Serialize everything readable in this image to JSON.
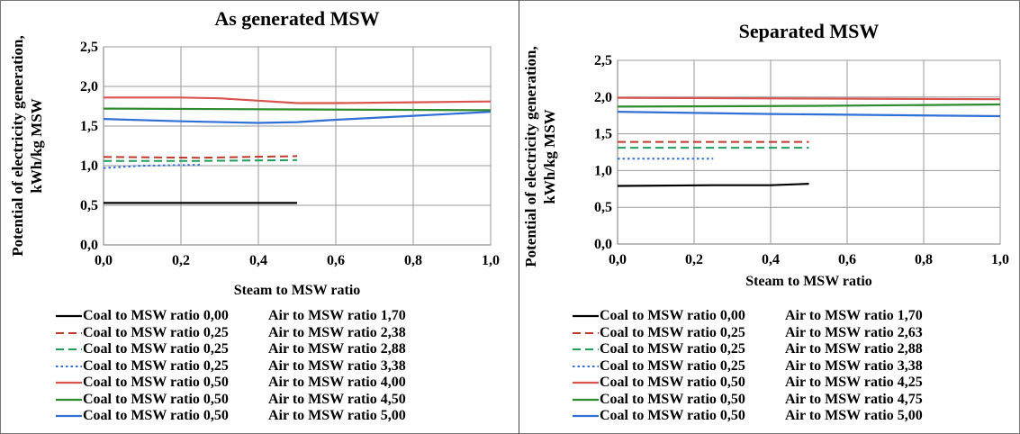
{
  "chart_data": [
    {
      "type": "line",
      "title": "As generated MSW",
      "xlabel": "Steam to MSW ratio",
      "ylabel": "Potential of electricity generation, kWh/kg MSW",
      "xlim": [
        0,
        1
      ],
      "ylim": [
        0,
        2.5
      ],
      "x_ticks": [
        "0,0",
        "0,2",
        "0,4",
        "0,6",
        "0,8",
        "1,0"
      ],
      "y_ticks": [
        "0,0",
        "0,5",
        "1,0",
        "1,5",
        "2,0",
        "2,5"
      ],
      "grid": "both",
      "legend_position": "bottom",
      "series": [
        {
          "name": "Coal to MSW ratio 0,00",
          "air": "Air to MSW ratio 1,70",
          "color": "#000000",
          "style": "solid",
          "x": [
            0,
            0.25,
            0.5
          ],
          "y": [
            0.53,
            0.53,
            0.53
          ]
        },
        {
          "name": "Coal to MSW ratio 0,25",
          "air": "Air to MSW ratio 2,38",
          "color": "#c0392b",
          "style": "dashed",
          "x": [
            0,
            0.25,
            0.5
          ],
          "y": [
            1.11,
            1.1,
            1.12
          ]
        },
        {
          "name": "Coal to MSW ratio 0,25",
          "air": "Air to MSW ratio 2,88",
          "color": "#1e9e5a",
          "style": "dashed",
          "x": [
            0,
            0.25,
            0.5
          ],
          "y": [
            1.06,
            1.06,
            1.07
          ]
        },
        {
          "name": "Coal to MSW ratio 0,25",
          "air": "Air to MSW ratio 3,38",
          "color": "#2f6fd6",
          "style": "dotted",
          "x": [
            0,
            0.1,
            0.25
          ],
          "y": [
            0.97,
            1.0,
            1.01
          ]
        },
        {
          "name": "Coal to MSW ratio 0,50",
          "air": "Air to MSW ratio 4,00",
          "color": "#d9534f",
          "style": "solid",
          "x": [
            0,
            0.2,
            0.3,
            0.4,
            0.5,
            0.6,
            0.8,
            1.0
          ],
          "y": [
            1.86,
            1.86,
            1.85,
            1.82,
            1.79,
            1.79,
            1.8,
            1.81
          ]
        },
        {
          "name": "Coal to MSW ratio 0,50",
          "air": "Air to MSW ratio 4,50",
          "color": "#2e8b2e",
          "style": "solid",
          "x": [
            0,
            0.5,
            1.0
          ],
          "y": [
            1.72,
            1.71,
            1.7
          ]
        },
        {
          "name": "Coal to MSW ratio 0,50",
          "air": "Air to MSW ratio 5,00",
          "color": "#2f6fd6",
          "style": "solid",
          "x": [
            0,
            0.2,
            0.4,
            0.5,
            0.6,
            0.8,
            1.0
          ],
          "y": [
            1.59,
            1.56,
            1.54,
            1.55,
            1.58,
            1.63,
            1.68
          ]
        }
      ]
    },
    {
      "type": "line",
      "title": "Separated MSW",
      "xlabel": "Steam to MSW ratio",
      "ylabel": "Potential of electricity generation, kWh/kg MSW",
      "xlim": [
        0,
        1
      ],
      "ylim": [
        0,
        2.5
      ],
      "x_ticks": [
        "0,0",
        "0,2",
        "0,4",
        "0,6",
        "0,8",
        "1,0"
      ],
      "y_ticks": [
        "0,0",
        "0,5",
        "1,0",
        "1,5",
        "2,0",
        "2,5"
      ],
      "grid": "both",
      "legend_position": "bottom",
      "series": [
        {
          "name": "Coal to MSW ratio 0,00",
          "air": "Air to MSW ratio 1,70",
          "color": "#000000",
          "style": "solid",
          "x": [
            0,
            0.25,
            0.4,
            0.5
          ],
          "y": [
            0.79,
            0.8,
            0.8,
            0.82
          ]
        },
        {
          "name": "Coal to MSW ratio 0,25",
          "air": "Air to MSW ratio 2,63",
          "color": "#c0392b",
          "style": "dashed",
          "x": [
            0,
            0.25,
            0.5
          ],
          "y": [
            1.39,
            1.39,
            1.39
          ]
        },
        {
          "name": "Coal to MSW ratio 0,25",
          "air": "Air to MSW ratio 2,88",
          "color": "#1e9e5a",
          "style": "dashed",
          "x": [
            0,
            0.25,
            0.5
          ],
          "y": [
            1.31,
            1.31,
            1.31
          ]
        },
        {
          "name": "Coal to MSW ratio 0,25",
          "air": "Air to MSW ratio 3,38",
          "color": "#2f6fd6",
          "style": "dotted",
          "x": [
            0,
            0.1,
            0.25
          ],
          "y": [
            1.16,
            1.16,
            1.16
          ]
        },
        {
          "name": "Coal to MSW ratio 0,50",
          "air": "Air to MSW ratio 4,25",
          "color": "#d9534f",
          "style": "solid",
          "x": [
            0,
            0.5,
            1.0
          ],
          "y": [
            1.99,
            1.98,
            1.97
          ]
        },
        {
          "name": "Coal to MSW ratio 0,50",
          "air": "Air to MSW ratio 4,75",
          "color": "#2e8b2e",
          "style": "solid",
          "x": [
            0,
            0.5,
            1.0
          ],
          "y": [
            1.87,
            1.88,
            1.9
          ]
        },
        {
          "name": "Coal to MSW ratio 0,50",
          "air": "Air to MSW ratio 5,00",
          "color": "#2f6fd6",
          "style": "solid",
          "x": [
            0,
            0.4,
            0.6,
            1.0
          ],
          "y": [
            1.8,
            1.77,
            1.76,
            1.74
          ]
        }
      ]
    }
  ]
}
